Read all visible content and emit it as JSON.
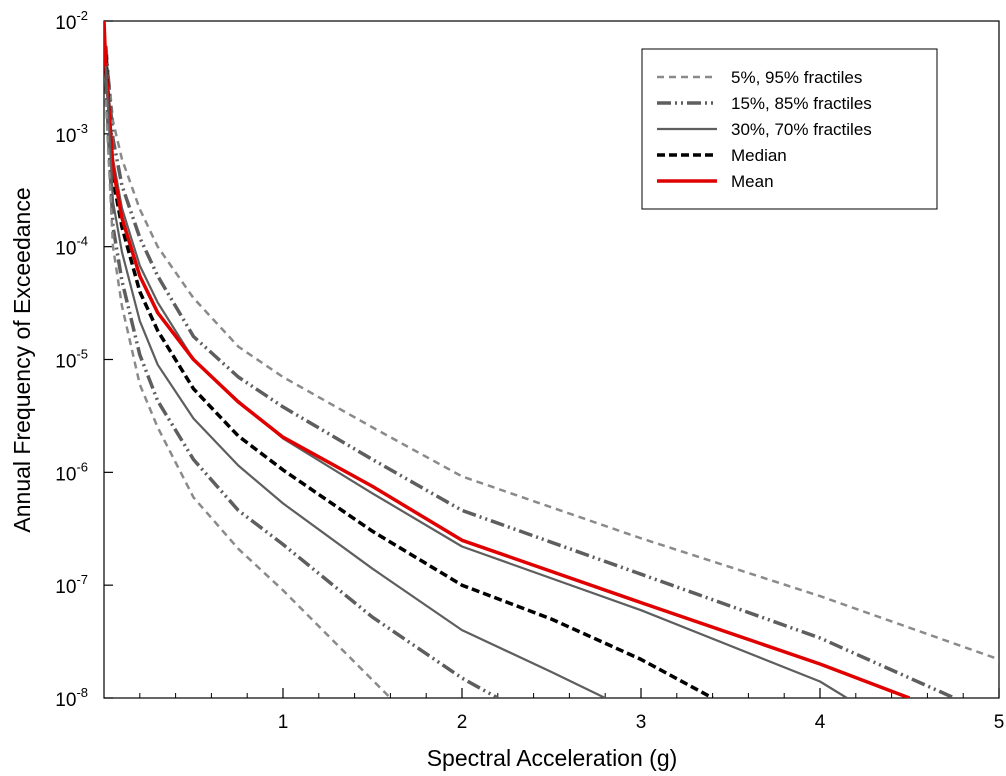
{
  "chart_data": {
    "type": "line",
    "title": "",
    "xlabel": "Spectral Acceleration (g)",
    "ylabel": "Annual Frequency of Exceedance",
    "xlim": [
      0,
      5
    ],
    "ylim": [
      1e-08,
      0.01
    ],
    "yscale": "log",
    "grid": false,
    "legend_position": "top-right",
    "x_ticks": [
      {
        "value": 1,
        "label": "1"
      },
      {
        "value": 2,
        "label": "2"
      },
      {
        "value": 3,
        "label": "3"
      },
      {
        "value": 4,
        "label": "4"
      },
      {
        "value": 5,
        "label": "5"
      }
    ],
    "y_ticks": [
      {
        "value": 1e-08,
        "base": "10",
        "exp": "-8"
      },
      {
        "value": 1e-07,
        "base": "10",
        "exp": "-7"
      },
      {
        "value": 1e-06,
        "base": "10",
        "exp": "-6"
      },
      {
        "value": 1e-05,
        "base": "10",
        "exp": "-5"
      },
      {
        "value": 0.0001,
        "base": "10",
        "exp": "-4"
      },
      {
        "value": 0.001,
        "base": "10",
        "exp": "-3"
      },
      {
        "value": 0.01,
        "base": "10",
        "exp": "-2"
      }
    ],
    "legend": [
      {
        "label": "5%, 95% fractiles",
        "style": "dash-light"
      },
      {
        "label": "15%, 85% fractiles",
        "style": "dash-dot-dot"
      },
      {
        "label": "30%, 70% fractiles",
        "style": "solid-gray"
      },
      {
        "label": "Median",
        "style": "dash-black"
      },
      {
        "label": "Mean",
        "style": "solid-red"
      }
    ],
    "styles": {
      "dash-light": {
        "color": "#8a8a8a",
        "dash": "7,5",
        "width": 2.5
      },
      "dash-dot-dot": {
        "color": "#5e5e5e",
        "dash": "14,4,2,4,2,4",
        "width": 3.5
      },
      "solid-gray": {
        "color": "#5e5e5e",
        "dash": "",
        "width": 2.2
      },
      "dash-black": {
        "color": "#000000",
        "dash": "8,4",
        "width": 3.5
      },
      "solid-red": {
        "color": "#e00000",
        "dash": "",
        "width": 3.5
      }
    },
    "series": [
      {
        "group": "5%, 95% fractiles",
        "style": "dash-light",
        "x": [
          0.01,
          0.05,
          0.1,
          0.2,
          0.3,
          0.5,
          0.75,
          1,
          1.5,
          2,
          3,
          4,
          5
        ],
        "y": [
          0.006,
          0.0013,
          0.0006,
          0.000215,
          0.0001,
          3.5e-05,
          1.3e-05,
          7e-06,
          2.5e-06,
          9.2e-07,
          2.6e-07,
          8e-08,
          2.2e-08
        ]
      },
      {
        "group": "15%, 85% fractiles",
        "style": "dash-dot-dot",
        "x": [
          0.01,
          0.05,
          0.1,
          0.2,
          0.3,
          0.5,
          0.75,
          1,
          1.5,
          2,
          3,
          4,
          4.75
        ],
        "y": [
          0.006,
          0.0009,
          0.00035,
          0.00012,
          5.5e-05,
          1.6e-05,
          7e-06,
          3.8e-06,
          1.3e-06,
          4.6e-07,
          1.25e-07,
          3.4e-08,
          1e-08
        ]
      },
      {
        "group": "30%, 70% fractiles",
        "style": "solid-gray",
        "x": [
          0.01,
          0.05,
          0.1,
          0.2,
          0.3,
          0.5,
          0.75,
          1,
          1.5,
          2,
          3,
          4,
          4.15
        ],
        "y": [
          0.006,
          0.0006,
          0.00022,
          6.8e-05,
          3.2e-05,
          1e-05,
          4.3e-06,
          2e-06,
          6.5e-07,
          2.2e-07,
          6e-08,
          1.4e-08,
          1e-08
        ]
      },
      {
        "group": "Median",
        "style": "dash-black",
        "x": [
          0.01,
          0.05,
          0.1,
          0.2,
          0.3,
          0.5,
          0.75,
          1,
          1.5,
          2,
          2.5,
          3,
          3.4
        ],
        "y": [
          0.005,
          0.0004,
          0.00015,
          4e-05,
          1.8e-05,
          5.5e-06,
          2.1e-06,
          1.05e-06,
          3e-07,
          1e-07,
          5e-08,
          2.2e-08,
          1e-08
        ]
      },
      {
        "group": "Mean",
        "style": "solid-red",
        "x": [
          0.0,
          0.01,
          0.05,
          0.1,
          0.2,
          0.3,
          0.5,
          0.75,
          1,
          1.5,
          2,
          3,
          4,
          4.5
        ],
        "y": [
          0.01,
          0.004,
          0.0005,
          0.00018,
          5.5e-05,
          2.6e-05,
          1e-05,
          4.2e-06,
          2.05e-06,
          7.5e-07,
          2.5e-07,
          7e-08,
          2e-08,
          1e-08
        ]
      },
      {
        "group": "30%, 70% fractiles",
        "style": "solid-gray",
        "x": [
          0.01,
          0.05,
          0.1,
          0.2,
          0.3,
          0.5,
          0.75,
          1,
          1.5,
          2,
          2.5,
          2.8
        ],
        "y": [
          0.004,
          0.00025,
          9e-05,
          2.2e-05,
          9e-06,
          3e-06,
          1.15e-06,
          5.3e-07,
          1.4e-07,
          4e-08,
          1.7e-08,
          1e-08
        ]
      },
      {
        "group": "15%, 85% fractiles",
        "style": "dash-dot-dot",
        "x": [
          0.01,
          0.05,
          0.1,
          0.2,
          0.3,
          0.5,
          0.75,
          1,
          1.5,
          2,
          2.2
        ],
        "y": [
          0.003,
          0.00015,
          5e-05,
          1.1e-05,
          4.3e-06,
          1.3e-06,
          4.6e-07,
          2.3e-07,
          5.2e-08,
          1.5e-08,
          1e-08
        ]
      },
      {
        "group": "5%, 95% fractiles",
        "style": "dash-light",
        "x": [
          0.01,
          0.05,
          0.1,
          0.2,
          0.3,
          0.5,
          0.75,
          1,
          1.3,
          1.6
        ],
        "y": [
          0.002,
          0.0001,
          3e-05,
          6e-06,
          2.5e-06,
          6e-07,
          2.1e-07,
          9e-08,
          3e-08,
          1e-08
        ]
      }
    ]
  }
}
